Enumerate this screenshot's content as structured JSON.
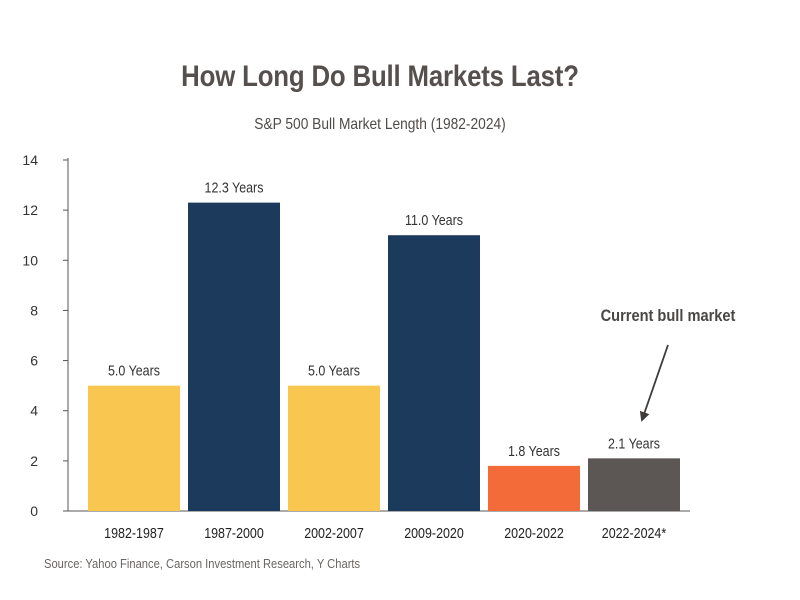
{
  "header": {
    "title": "How Long Do Bull Markets Last?",
    "subtitle": "S&P 500 Bull Market Length (1982-2024)"
  },
  "footer": {
    "source": "Source: Yahoo Finance, Carson Investment Research, Y Charts"
  },
  "annotation": {
    "text": "Current bull market"
  },
  "chart_data": {
    "type": "bar",
    "title": "How Long Do Bull Markets Last?",
    "subtitle": "S&P 500 Bull Market Length (1982-2024)",
    "xlabel": "",
    "ylabel": "",
    "ylim": [
      0,
      14
    ],
    "yticks": [
      0,
      2,
      4,
      6,
      8,
      10,
      12,
      14
    ],
    "grid": false,
    "legend": "none",
    "categories": [
      "1982-1987",
      "1987-2000",
      "2002-2007",
      "2009-2020",
      "2020-2022",
      "2022-2024*"
    ],
    "values": [
      5.0,
      12.3,
      5.0,
      11.0,
      1.8,
      2.1
    ],
    "data_labels": [
      "5.0 Years",
      "12.3 Years",
      "5.0 Years",
      "11.0 Years",
      "1.8 Years",
      "2.1 Years"
    ],
    "colors": [
      "#f9c74f",
      "#1b3a5c",
      "#f9c74f",
      "#1b3a5c",
      "#f26b38",
      "#5c5654"
    ],
    "annotations": [
      {
        "text": "Current bull market",
        "target_category": "2022-2024*"
      }
    ]
  }
}
